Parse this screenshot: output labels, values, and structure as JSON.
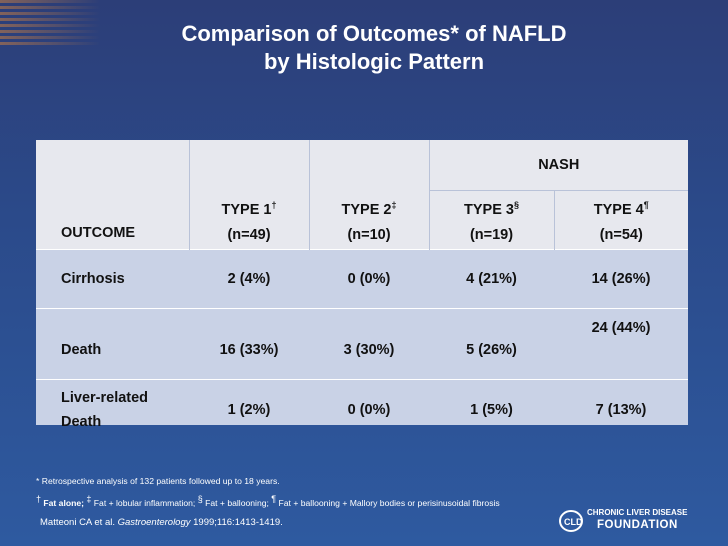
{
  "title": {
    "line1": "Comparison of Outcomes* of NAFLD",
    "line2": "by Histologic Pattern"
  },
  "table": {
    "group_header": "NASH",
    "outcome_header": "OUTCOME",
    "columns": [
      {
        "type": "TYPE 1",
        "mark": "†",
        "n": "(n=49)"
      },
      {
        "type": "TYPE 2",
        "mark": "‡",
        "n": "(n=10)"
      },
      {
        "type": "TYPE 3",
        "mark": "§",
        "n": "(n=19)"
      },
      {
        "type": "TYPE 4",
        "mark": "¶",
        "n": "(n=54)"
      }
    ],
    "rows": [
      {
        "label_line1": "Cirrhosis",
        "label_line2": "",
        "values": [
          "2 (4%)",
          "0 (0%)",
          "4 (21%)",
          "14 (26%)"
        ]
      },
      {
        "label_line1": "Death",
        "label_line2": "",
        "values": [
          "16 (33%)",
          "3 (30%)",
          "5 (26%)",
          "24 (44%)"
        ]
      },
      {
        "label_line1": "Liver-related",
        "label_line2": "Death",
        "values": [
          "1 (2%)",
          "0 (0%)",
          "1 (5%)",
          "7 (13%)"
        ]
      }
    ]
  },
  "footnotes": {
    "line1": "* Retrospective analysis of 132 patients followed up to 18 years.",
    "m1": "†",
    "f1": "Fat alone;",
    "m2": "‡",
    "f2": "Fat + lobular inflammation;",
    "m3": "§",
    "f3": "Fat + ballooning;",
    "m4": "¶",
    "f4": "Fat + ballooning + Mallory bodies or perisinusoidal fibrosis"
  },
  "citation": {
    "authors": "Matteoni CA et al.",
    "journal": "Gastroenterology",
    "details": "1999;116:1413-1419."
  },
  "logo": {
    "line1": "CHRONIC LIVER DISEASE",
    "line2": "FOUNDATION",
    "mark": "CLD"
  }
}
